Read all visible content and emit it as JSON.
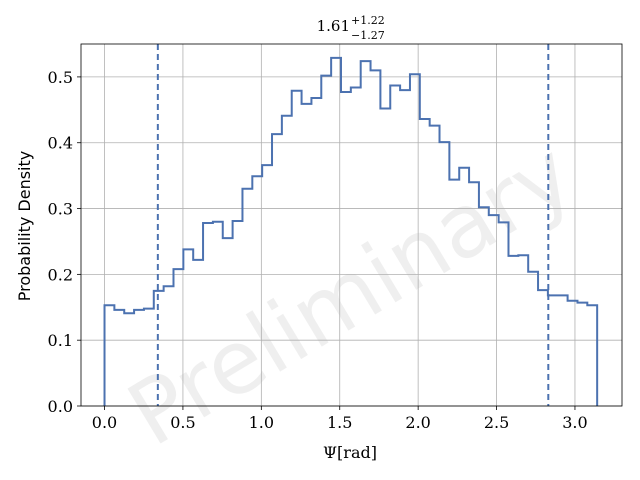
{
  "chart_data": {
    "type": "histogram",
    "title": {
      "median": "1.61",
      "plus": "+1.22",
      "minus": "−1.27"
    },
    "xlabel": "Ψ[rad]",
    "ylabel": "Probability Density",
    "watermark": "Preliminary",
    "xlim": [
      -0.15,
      3.3
    ],
    "ylim": [
      0.0,
      0.55
    ],
    "xticks": [
      0.0,
      0.5,
      1.0,
      1.5,
      2.0,
      2.5,
      3.0
    ],
    "xtick_labels": [
      "0.0",
      "0.5",
      "1.0",
      "1.5",
      "2.0",
      "2.5",
      "3.0"
    ],
    "yticks": [
      0.0,
      0.1,
      0.2,
      0.3,
      0.4,
      0.5
    ],
    "ytick_labels": [
      "0.0",
      "0.1",
      "0.2",
      "0.3",
      "0.4",
      "0.5"
    ],
    "grid": true,
    "color": "#4c72b0",
    "bin_start": 0.0,
    "bin_end": 3.1416,
    "densities": [
      0.153,
      0.146,
      0.141,
      0.146,
      0.148,
      0.175,
      0.182,
      0.208,
      0.238,
      0.222,
      0.278,
      0.28,
      0.255,
      0.281,
      0.33,
      0.349,
      0.366,
      0.413,
      0.441,
      0.479,
      0.459,
      0.468,
      0.502,
      0.529,
      0.477,
      0.484,
      0.524,
      0.51,
      0.452,
      0.487,
      0.48,
      0.504,
      0.436,
      0.426,
      0.401,
      0.344,
      0.362,
      0.34,
      0.302,
      0.29,
      0.279,
      0.228,
      0.229,
      0.204,
      0.176,
      0.168,
      0.168,
      0.16,
      0.157,
      0.153
    ],
    "interval_lines": [
      0.34,
      2.83
    ]
  }
}
